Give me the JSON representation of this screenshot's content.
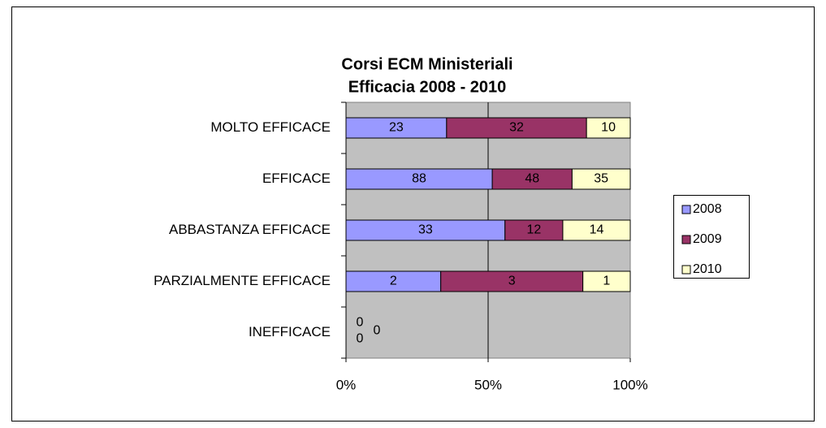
{
  "chart_data": {
    "type": "bar",
    "orientation": "horizontal",
    "stacked": "percent",
    "title": [
      "Corsi ECM Ministeriali",
      "Efficacia 2008 - 2010"
    ],
    "categories": [
      "MOLTO EFFICACE",
      "EFFICACE",
      "ABBASTANZA EFFICACE",
      "PARZIALMENTE EFFICACE",
      "INEFFICACE"
    ],
    "series": [
      {
        "name": "2008",
        "color": "#9999ff",
        "values": [
          23,
          88,
          33,
          2,
          0
        ]
      },
      {
        "name": "2009",
        "color": "#993366",
        "values": [
          32,
          48,
          12,
          3,
          0
        ]
      },
      {
        "name": "2010",
        "color": "#ffffcc",
        "values": [
          10,
          35,
          14,
          1,
          0
        ]
      }
    ],
    "xlim": [
      0,
      100
    ],
    "xticks": [
      {
        "value": 0,
        "label": "0%"
      },
      {
        "value": 50,
        "label": "50%"
      },
      {
        "value": 100,
        "label": "100%"
      }
    ],
    "grid": true,
    "legend": "right"
  }
}
